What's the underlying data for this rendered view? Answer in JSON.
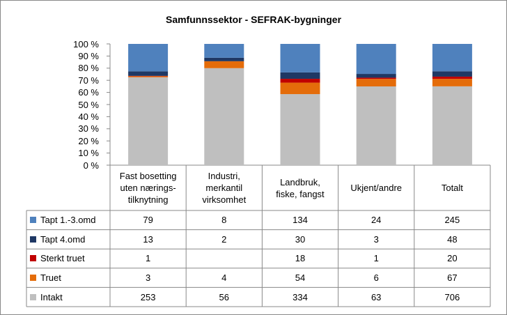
{
  "chart_data": {
    "type": "bar100",
    "title": "Samfunnssektor - SEFRAK-bygninger",
    "categories": [
      "Fast bosetting\nuten nærings-\ntilknytning",
      "Industri,\nmerkantil\nvirksomhet",
      "Landbruk,\nfiske, fangst",
      "Ukjent/andre",
      "Totalt"
    ],
    "series": [
      {
        "name": "Tapt 1.-3.omd",
        "color": "#4f81bd",
        "values": [
          79,
          8,
          134,
          24,
          245
        ]
      },
      {
        "name": "Tapt 4.omd",
        "color": "#1f3864",
        "values": [
          13,
          2,
          30,
          3,
          48
        ]
      },
      {
        "name": "Sterkt truet",
        "color": "#c00000",
        "values": [
          1,
          null,
          18,
          1,
          20
        ]
      },
      {
        "name": "Truet",
        "color": "#e46c0a",
        "values": [
          3,
          4,
          54,
          6,
          67
        ]
      },
      {
        "name": "Intakt",
        "color": "#bfbfbf",
        "values": [
          253,
          56,
          334,
          63,
          706
        ]
      }
    ],
    "ylim": [
      0,
      100
    ],
    "yticks": [
      {
        "value": 0,
        "label": "0 %"
      },
      {
        "value": 10,
        "label": "10 %"
      },
      {
        "value": 20,
        "label": "20 %"
      },
      {
        "value": 30,
        "label": "30 %"
      },
      {
        "value": 40,
        "label": "40 %"
      },
      {
        "value": 50,
        "label": "50 %"
      },
      {
        "value": 60,
        "label": "60 %"
      },
      {
        "value": 70,
        "label": "70 %"
      },
      {
        "value": 80,
        "label": "80 %"
      },
      {
        "value": 90,
        "label": "90 %"
      },
      {
        "value": 100,
        "label": "100 %"
      }
    ],
    "grid": false
  }
}
